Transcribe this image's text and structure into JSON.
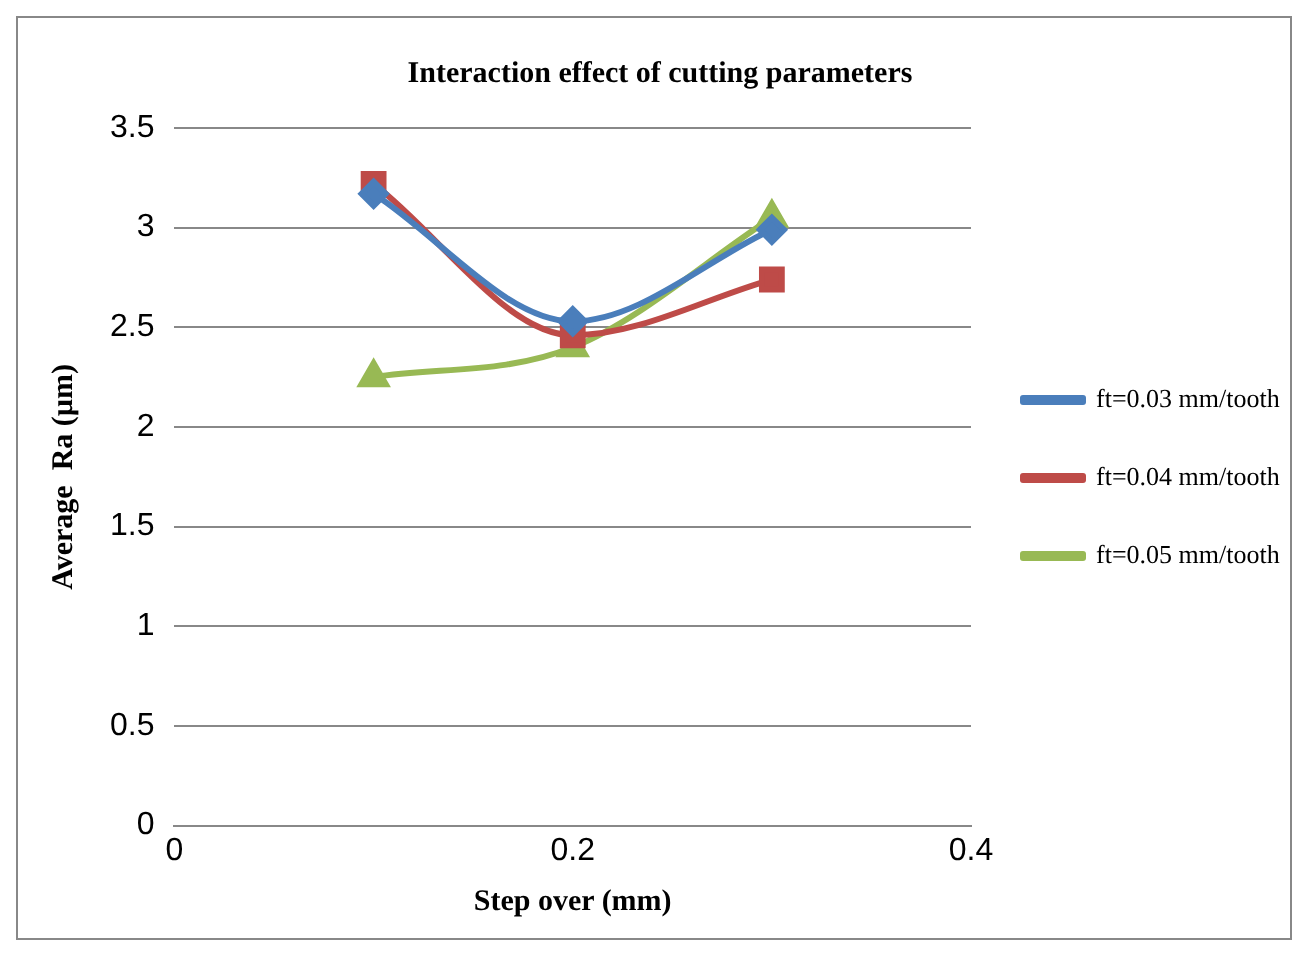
{
  "chart_data": {
    "type": "line",
    "title": "Interaction effect of cutting parameters",
    "xlabel": "Step over (mm)",
    "ylabel": "Average  Ra (µm)",
    "x": [
      0.1,
      0.2,
      0.3
    ],
    "series": [
      {
        "name": "ft=0.03 mm/tooth",
        "color": "#4a7ebb",
        "marker": "diamond",
        "values": [
          3.17,
          2.53,
          2.99
        ]
      },
      {
        "name": "ft=0.04 mm/tooth",
        "color": "#be4b48",
        "marker": "square",
        "values": [
          3.22,
          2.46,
          2.74
        ]
      },
      {
        "name": "ft=0.05 mm/tooth",
        "color": "#98b954",
        "marker": "triangle",
        "values": [
          2.25,
          2.4,
          3.05
        ]
      }
    ],
    "xlim": [
      0,
      0.4
    ],
    "xticks": [
      0,
      0.2,
      0.4
    ],
    "ylim": [
      0,
      3.5
    ],
    "yticks": [
      0,
      0.5,
      1,
      1.5,
      2,
      2.5,
      3,
      3.5
    ],
    "grid": "y",
    "legend": "right"
  }
}
